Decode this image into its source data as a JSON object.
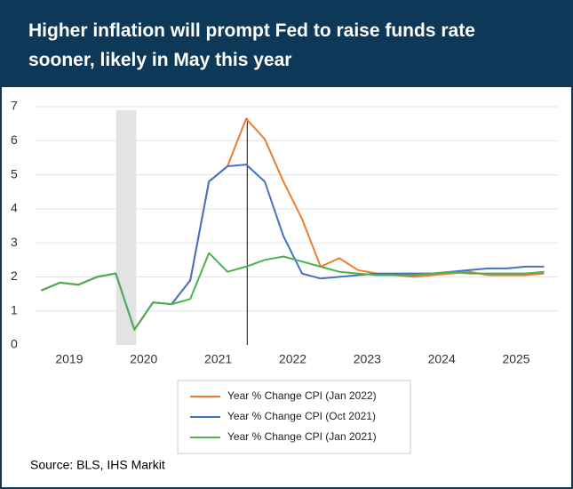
{
  "chart_data": {
    "type": "line",
    "title": "Higher inflation will prompt Fed to raise funds rate sooner, likely in May this year",
    "x": [
      2018.625,
      2018.875,
      2019.125,
      2019.375,
      2019.625,
      2019.875,
      2020.125,
      2020.375,
      2020.625,
      2020.875,
      2021.125,
      2021.375,
      2021.625,
      2021.875,
      2022.125,
      2022.375,
      2022.625,
      2022.875,
      2023.125,
      2023.375,
      2023.625,
      2023.875,
      2024.125,
      2024.375,
      2024.625,
      2024.875,
      2025.125,
      2025.375
    ],
    "series": [
      {
        "name": "Year % Change CPI (Jan 2022)",
        "color": "#ed7d31",
        "values": [
          1.6,
          1.83,
          1.77,
          2.0,
          2.1,
          0.45,
          1.25,
          1.2,
          1.9,
          4.8,
          5.25,
          6.65,
          6.05,
          4.8,
          3.7,
          2.3,
          2.55,
          2.2,
          2.1,
          2.05,
          2.0,
          2.05,
          2.1,
          2.15,
          2.05,
          2.05,
          2.05,
          2.1
        ]
      },
      {
        "name": "Year % Change CPI (Oct 2021)",
        "color": "#4472c4",
        "values": [
          1.6,
          1.83,
          1.77,
          2.0,
          2.1,
          0.45,
          1.25,
          1.2,
          1.9,
          4.8,
          5.25,
          5.3,
          4.8,
          3.2,
          2.1,
          1.95,
          2.0,
          2.05,
          2.1,
          2.1,
          2.1,
          2.1,
          2.15,
          2.2,
          2.25,
          2.25,
          2.3,
          2.3
        ]
      },
      {
        "name": "Year % Change CPI (Jan 2021)",
        "color": "#4caf50",
        "values": [
          1.6,
          1.83,
          1.77,
          2.0,
          2.1,
          0.45,
          1.25,
          1.2,
          1.35,
          2.7,
          2.15,
          2.3,
          2.5,
          2.6,
          2.45,
          2.3,
          2.15,
          2.1,
          2.05,
          2.05,
          2.05,
          2.1,
          2.15,
          2.1,
          2.1,
          2.1,
          2.1,
          2.15
        ]
      }
    ],
    "xlim": [
      2018.5,
      2025.56
    ],
    "xticks": [
      2019,
      2020,
      2021,
      2022,
      2023,
      2024,
      2025
    ],
    "ylim": [
      0,
      7
    ],
    "yticks": [
      0,
      1,
      2,
      3,
      4,
      5,
      6,
      7
    ],
    "grid": true,
    "shaded_x": [
      2019.63,
      2019.9
    ],
    "vline_x": 2021.39,
    "legend": "bottom",
    "source": "Source: BLS, IHS Markit"
  }
}
